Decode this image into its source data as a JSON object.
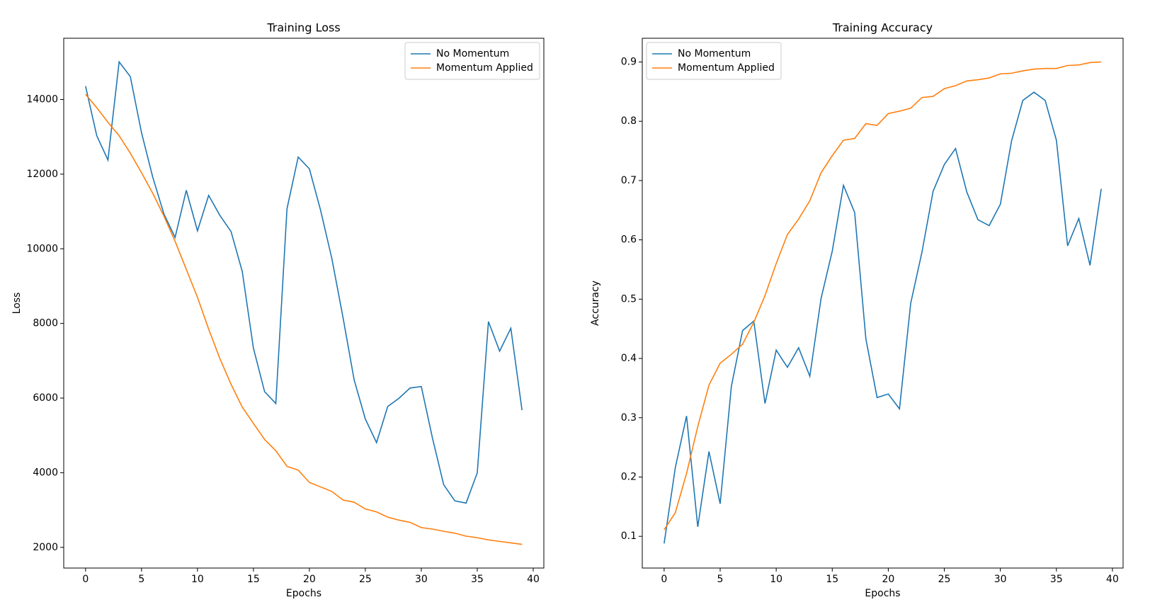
{
  "chart_data": [
    {
      "type": "line",
      "title": "Training Loss",
      "xlabel": "Epochs",
      "ylabel": "Loss",
      "x": [
        0,
        1,
        2,
        3,
        4,
        5,
        6,
        7,
        8,
        9,
        10,
        11,
        12,
        13,
        14,
        15,
        16,
        17,
        18,
        19,
        20,
        21,
        22,
        23,
        24,
        25,
        26,
        27,
        28,
        29,
        30,
        31,
        32,
        33,
        34,
        35,
        36,
        37,
        38,
        39
      ],
      "series": [
        {
          "name": "No Momentum",
          "color": "#1f77b4",
          "values": [
            14356,
            13031,
            12379,
            15008,
            14613,
            13110,
            11924,
            10936,
            10303,
            11568,
            10481,
            11430,
            10896,
            10461,
            9394,
            7337,
            6171,
            5854,
            11074,
            12458,
            12142,
            11034,
            9749,
            8168,
            6487,
            5439,
            4807,
            5775,
            5993,
            6270,
            6309,
            4925,
            3680,
            3245,
            3186,
            3996,
            8049,
            7258,
            7871,
            5677
          ]
        },
        {
          "name": "Momentum Applied",
          "color": "#ff7f0e",
          "values": [
            14140,
            13780,
            13390,
            13030,
            12560,
            12040,
            11490,
            10880,
            10200,
            9450,
            8700,
            7850,
            7060,
            6370,
            5760,
            5320,
            4890,
            4590,
            4170,
            4070,
            3740,
            3620,
            3500,
            3270,
            3210,
            3030,
            2950,
            2810,
            2730,
            2670,
            2530,
            2490,
            2430,
            2380,
            2300,
            2260,
            2200,
            2160,
            2120,
            2080
          ]
        }
      ],
      "xlim": [
        -1.95,
        40.95
      ],
      "xticks": [
        0,
        5,
        10,
        15,
        20,
        25,
        30,
        35,
        40
      ],
      "ylim": [
        1446,
        15641
      ],
      "yticks": [
        2000,
        4000,
        6000,
        8000,
        10000,
        12000,
        14000
      ],
      "legend": "upper right"
    },
    {
      "type": "line",
      "title": "Training Accuracy",
      "xlabel": "Epochs",
      "ylabel": "Accuracy",
      "x": [
        0,
        1,
        2,
        3,
        4,
        5,
        6,
        7,
        8,
        9,
        10,
        11,
        12,
        13,
        14,
        15,
        16,
        17,
        18,
        19,
        20,
        21,
        22,
        23,
        24,
        25,
        26,
        27,
        28,
        29,
        30,
        31,
        32,
        33,
        34,
        35,
        36,
        37,
        38,
        39
      ],
      "series": [
        {
          "name": "No Momentum",
          "color": "#1f77b4",
          "values": [
            0.088,
            0.216,
            0.303,
            0.116,
            0.243,
            0.155,
            0.353,
            0.447,
            0.463,
            0.324,
            0.414,
            0.385,
            0.418,
            0.37,
            0.501,
            0.581,
            0.692,
            0.646,
            0.433,
            0.334,
            0.34,
            0.315,
            0.493,
            0.579,
            0.682,
            0.727,
            0.754,
            0.681,
            0.634,
            0.624,
            0.66,
            0.767,
            0.835,
            0.849,
            0.835,
            0.768,
            0.59,
            0.636,
            0.557,
            0.686
          ]
        },
        {
          "name": "Momentum Applied",
          "color": "#ff7f0e",
          "values": [
            0.111,
            0.14,
            0.206,
            0.285,
            0.355,
            0.392,
            0.407,
            0.424,
            0.461,
            0.506,
            0.56,
            0.609,
            0.635,
            0.666,
            0.713,
            0.742,
            0.768,
            0.771,
            0.796,
            0.793,
            0.813,
            0.817,
            0.822,
            0.84,
            0.842,
            0.855,
            0.86,
            0.868,
            0.87,
            0.873,
            0.88,
            0.881,
            0.885,
            0.888,
            0.889,
            0.889,
            0.894,
            0.895,
            0.899,
            0.9
          ]
        }
      ],
      "xlim": [
        -1.95,
        40.95
      ],
      "xticks": [
        0,
        5,
        10,
        15,
        20,
        25,
        30,
        35,
        40
      ],
      "ylim": [
        0.0465,
        0.94
      ],
      "yticks": [
        0.1,
        0.2,
        0.3,
        0.4,
        0.5,
        0.6,
        0.7,
        0.8,
        0.9
      ],
      "legend": "upper left"
    }
  ]
}
